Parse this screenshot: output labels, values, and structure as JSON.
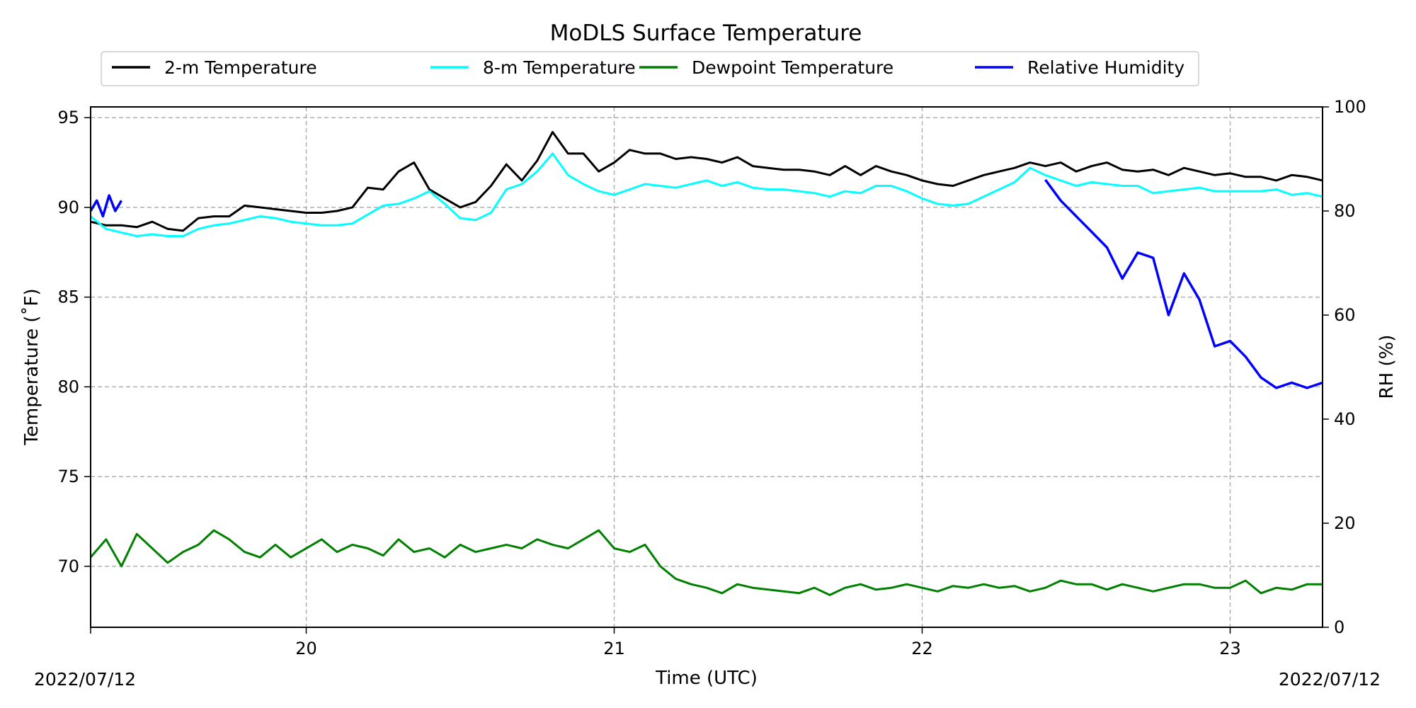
{
  "chart_data": {
    "type": "line",
    "title": "MoDLS Surface Temperature",
    "xlabel": "Time (UTC)",
    "ylabel": "Temperature ($^\\circ$F)",
    "ylabel_display": "Temperature (˚F)",
    "y2label": "RH (%)",
    "xlim": [
      19.3,
      23.3
    ],
    "ylim": [
      66.6,
      95.6
    ],
    "y2lim": [
      0,
      100
    ],
    "x_ticks": [
      20,
      21,
      22,
      23
    ],
    "x_tick_labels": [
      "20",
      "21",
      "22",
      "23"
    ],
    "y_ticks": [
      70,
      75,
      80,
      85,
      90,
      95
    ],
    "y_tick_labels": [
      "70",
      "75",
      "80",
      "85",
      "90",
      "95"
    ],
    "y2_ticks": [
      0,
      20,
      40,
      60,
      80,
      100
    ],
    "y2_tick_labels": [
      "0",
      "20",
      "40",
      "60",
      "80",
      "100"
    ],
    "date_start": "2022/07/12",
    "date_end": "2022/07/12",
    "grid": true,
    "legend_position": "top",
    "series": [
      {
        "name": "2-m Temperature",
        "axis": "left",
        "color": "#000000",
        "x": [
          19.3,
          19.35,
          19.4,
          19.45,
          19.5,
          19.55,
          19.6,
          19.65,
          19.7,
          19.75,
          19.8,
          19.85,
          19.9,
          19.95,
          20.0,
          20.05,
          20.1,
          20.15,
          20.2,
          20.25,
          20.3,
          20.35,
          20.4,
          20.45,
          20.5,
          20.55,
          20.6,
          20.65,
          20.7,
          20.75,
          20.8,
          20.85,
          20.9,
          20.95,
          21.0,
          21.05,
          21.1,
          21.15,
          21.2,
          21.25,
          21.3,
          21.35,
          21.4,
          21.45,
          21.5,
          21.55,
          21.6,
          21.65,
          21.7,
          21.75,
          21.8,
          21.85,
          21.9,
          21.95,
          22.0,
          22.05,
          22.1,
          22.15,
          22.2,
          22.25,
          22.3,
          22.35,
          22.4,
          22.45,
          22.5,
          22.55,
          22.6,
          22.65,
          22.7,
          22.75,
          22.8,
          22.85,
          22.9,
          22.95,
          23.0,
          23.05,
          23.1,
          23.15,
          23.2,
          23.25,
          23.3
        ],
        "values": [
          89.2,
          89.0,
          89.0,
          88.9,
          89.2,
          88.8,
          88.7,
          89.4,
          89.5,
          89.5,
          90.1,
          90.0,
          89.9,
          89.8,
          89.7,
          89.7,
          89.8,
          90.0,
          91.1,
          91.0,
          92.0,
          92.5,
          91.0,
          90.5,
          90.0,
          90.3,
          91.2,
          92.4,
          91.5,
          92.6,
          94.2,
          93.0,
          93.0,
          92.0,
          92.5,
          93.2,
          93.0,
          93.0,
          92.7,
          92.8,
          92.7,
          92.5,
          92.8,
          92.3,
          92.2,
          92.1,
          92.1,
          92.0,
          91.8,
          92.3,
          91.8,
          92.3,
          92.0,
          91.8,
          91.5,
          91.3,
          91.2,
          91.5,
          91.8,
          92.0,
          92.2,
          92.5,
          92.3,
          92.5,
          92.0,
          92.3,
          92.5,
          92.1,
          92.0,
          92.1,
          91.8,
          92.2,
          92.0,
          91.8,
          91.9,
          91.7,
          91.7,
          91.5,
          91.8,
          91.7,
          91.5
        ]
      },
      {
        "name": "8-m Temperature",
        "axis": "left",
        "color": "#00ffff",
        "x": [
          19.3,
          19.35,
          19.4,
          19.45,
          19.5,
          19.55,
          19.6,
          19.65,
          19.7,
          19.75,
          19.8,
          19.85,
          19.9,
          19.95,
          20.0,
          20.05,
          20.1,
          20.15,
          20.2,
          20.25,
          20.3,
          20.35,
          20.4,
          20.45,
          20.5,
          20.55,
          20.6,
          20.65,
          20.7,
          20.75,
          20.8,
          20.85,
          20.9,
          20.95,
          21.0,
          21.05,
          21.1,
          21.15,
          21.2,
          21.25,
          21.3,
          21.35,
          21.4,
          21.45,
          21.5,
          21.55,
          21.6,
          21.65,
          21.7,
          21.75,
          21.8,
          21.85,
          21.9,
          21.95,
          22.0,
          22.05,
          22.1,
          22.15,
          22.2,
          22.25,
          22.3,
          22.35,
          22.4,
          22.45,
          22.5,
          22.55,
          22.6,
          22.65,
          22.7,
          22.75,
          22.8,
          22.85,
          22.9,
          22.95,
          23.0,
          23.05,
          23.1,
          23.15,
          23.2,
          23.25,
          23.3
        ],
        "values": [
          89.5,
          88.8,
          88.6,
          88.4,
          88.5,
          88.4,
          88.4,
          88.8,
          89.0,
          89.1,
          89.3,
          89.5,
          89.4,
          89.2,
          89.1,
          89.0,
          89.0,
          89.1,
          89.6,
          90.1,
          90.2,
          90.5,
          90.9,
          90.2,
          89.4,
          89.3,
          89.7,
          91.0,
          91.3,
          92.0,
          93.0,
          91.8,
          91.3,
          90.9,
          90.7,
          91.0,
          91.3,
          91.2,
          91.1,
          91.3,
          91.5,
          91.2,
          91.4,
          91.1,
          91.0,
          91.0,
          90.9,
          90.8,
          90.6,
          90.9,
          90.8,
          91.2,
          91.2,
          90.9,
          90.5,
          90.2,
          90.1,
          90.2,
          90.6,
          91.0,
          91.4,
          92.2,
          91.8,
          91.5,
          91.2,
          91.4,
          91.3,
          91.2,
          91.2,
          90.8,
          90.9,
          91.0,
          91.1,
          90.9,
          90.9,
          90.9,
          90.9,
          91.0,
          90.7,
          90.8,
          90.6
        ]
      },
      {
        "name": "Dewpoint Temperature",
        "axis": "left",
        "color": "#008000",
        "x": [
          19.3,
          19.35,
          19.4,
          19.45,
          19.5,
          19.55,
          19.6,
          19.65,
          19.7,
          19.75,
          19.8,
          19.85,
          19.9,
          19.95,
          20.0,
          20.05,
          20.1,
          20.15,
          20.2,
          20.25,
          20.3,
          20.35,
          20.4,
          20.45,
          20.5,
          20.55,
          20.6,
          20.65,
          20.7,
          20.75,
          20.8,
          20.85,
          20.9,
          20.95,
          21.0,
          21.05,
          21.1,
          21.15,
          21.2,
          21.25,
          21.3,
          21.35,
          21.4,
          21.45,
          21.5,
          21.55,
          21.6,
          21.65,
          21.7,
          21.75,
          21.8,
          21.85,
          21.9,
          21.95,
          22.0,
          22.05,
          22.1,
          22.15,
          22.2,
          22.25,
          22.3,
          22.35,
          22.4,
          22.45,
          22.5,
          22.55,
          22.6,
          22.65,
          22.7,
          22.75,
          22.8,
          22.85,
          22.9,
          22.95,
          23.0,
          23.05,
          23.1,
          23.15,
          23.2,
          23.25,
          23.3
        ],
        "values": [
          70.5,
          71.5,
          70.0,
          71.8,
          71.0,
          70.2,
          70.8,
          71.2,
          72.0,
          71.5,
          70.8,
          70.5,
          71.2,
          70.5,
          71.0,
          71.5,
          70.8,
          71.2,
          71.0,
          70.6,
          71.5,
          70.8,
          71.0,
          70.5,
          71.2,
          70.8,
          71.0,
          71.2,
          71.0,
          71.5,
          71.2,
          71.0,
          71.5,
          72.0,
          71.0,
          70.8,
          71.2,
          70.0,
          69.3,
          69.0,
          68.8,
          68.5,
          69.0,
          68.8,
          68.7,
          68.6,
          68.5,
          68.8,
          68.4,
          68.8,
          69.0,
          68.7,
          68.8,
          69.0,
          68.8,
          68.6,
          68.9,
          68.8,
          69.0,
          68.8,
          68.9,
          68.6,
          68.8,
          69.2,
          69.0,
          69.0,
          68.7,
          69.0,
          68.8,
          68.6,
          68.8,
          69.0,
          69.0,
          68.8,
          68.8,
          69.2,
          68.5,
          68.8,
          68.7,
          69.0,
          69.0
        ]
      },
      {
        "name": "Relative Humidity",
        "axis": "right",
        "color": "#0000ff",
        "x": [
          19.3,
          19.32,
          19.34,
          19.36,
          19.38,
          19.4,
          22.4,
          22.45,
          22.5,
          22.55,
          22.6,
          22.65,
          22.7,
          22.75,
          22.8,
          22.85,
          22.9,
          22.95,
          23.0,
          23.05,
          23.1,
          23.15,
          23.2,
          23.25,
          23.3
        ],
        "values": [
          80,
          82,
          79,
          83,
          80,
          82,
          86,
          82,
          79,
          76,
          73,
          67,
          72,
          71,
          60,
          68,
          63,
          54,
          55,
          52,
          48,
          46,
          47,
          46,
          47
        ]
      }
    ]
  }
}
